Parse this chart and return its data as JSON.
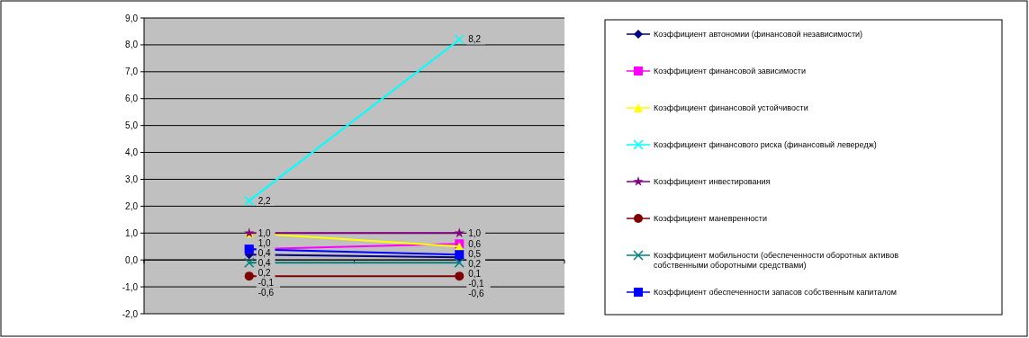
{
  "chart_data": {
    "type": "line",
    "categories": [
      null,
      null
    ],
    "series": [
      {
        "name": "Коэффициент автономии (финансовой независимости)",
        "color": "#000080",
        "marker": "diamond",
        "values": [
          0.2,
          0.1
        ],
        "value_labels": [
          "0,2",
          "0,1"
        ]
      },
      {
        "name": "Коэффициент финансовой зависимости",
        "color": "#ff00ff",
        "marker": "square",
        "values": [
          0.4,
          0.6
        ],
        "value_labels": [
          "0,4",
          "0,6"
        ]
      },
      {
        "name": "Коэффициент финансовой устойчивости",
        "color": "#ffff00",
        "marker": "triangle",
        "values": [
          1.0,
          0.5
        ],
        "value_labels": [
          "1,0",
          "0,5"
        ]
      },
      {
        "name": "Коэффициент финансового риска (финансовый левередж)",
        "color": "#00ffff",
        "marker": "cross",
        "values": [
          2.2,
          8.2
        ],
        "value_labels": [
          "2,2",
          "8,2"
        ]
      },
      {
        "name": "Коэффициент инвестирования",
        "color": "#800080",
        "marker": "star",
        "values": [
          1.0,
          1.0
        ],
        "value_labels": [
          "1,0",
          "1,0"
        ]
      },
      {
        "name": "Коэффициент маневренности",
        "color": "#800000",
        "marker": "circle",
        "values": [
          -0.6,
          -0.6
        ],
        "value_labels": [
          "-0,6",
          "-0,6"
        ]
      },
      {
        "name": "Коэффициент мобильности (обеспеченности оборотных активов собственными оборотными средствами)",
        "color": "#008080",
        "marker": "cross",
        "values": [
          -0.1,
          -0.1
        ],
        "value_labels": [
          "-0,1",
          "-0,1"
        ]
      },
      {
        "name": "Коэффициент обеспеченности запасов собственным капиталом",
        "color": "#0000ff",
        "marker": "square",
        "values": [
          0.4,
          0.2
        ],
        "value_labels": [
          "0,4",
          "0,2"
        ]
      }
    ],
    "ylim": [
      -2,
      9
    ],
    "yticks": [
      {
        "value": -2,
        "label": "-2,0"
      },
      {
        "value": -1,
        "label": "-1,0"
      },
      {
        "value": 0,
        "label": "0,0"
      },
      {
        "value": 1,
        "label": "1,0"
      },
      {
        "value": 2,
        "label": "2,0"
      },
      {
        "value": 3,
        "label": "3,0"
      },
      {
        "value": 4,
        "label": "4,0"
      },
      {
        "value": 5,
        "label": "5,0"
      },
      {
        "value": 6,
        "label": "6,0"
      },
      {
        "value": 7,
        "label": "7,0"
      },
      {
        "value": 8,
        "label": "8,0"
      },
      {
        "value": 9,
        "label": "9,0"
      }
    ],
    "grid": "y",
    "legend": "right"
  }
}
